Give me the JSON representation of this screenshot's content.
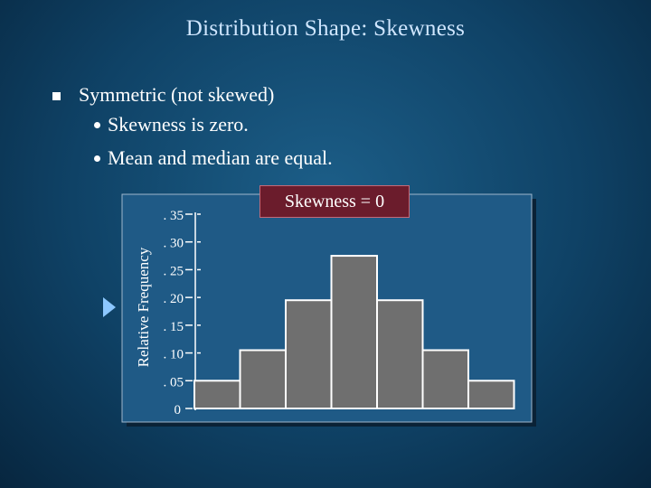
{
  "slide": {
    "title": "Distribution Shape:   Skewness",
    "bullet": "Symmetric (not skewed)",
    "subs": [
      "Skewness  is zero.",
      "Mean and median are equal."
    ],
    "badge": "Skewness  = 0"
  },
  "chart_data": {
    "type": "bar",
    "title": "",
    "xlabel": "",
    "ylabel": "Relative Frequency",
    "ylim": [
      0,
      0.35
    ],
    "yticks": [
      {
        "value": 0,
        "label": "0"
      },
      {
        "value": 0.05,
        "label": ". 05"
      },
      {
        "value": 0.1,
        "label": ". 10"
      },
      {
        "value": 0.15,
        "label": ". 15"
      },
      {
        "value": 0.2,
        "label": ". 20"
      },
      {
        "value": 0.25,
        "label": ". 25"
      },
      {
        "value": 0.3,
        "label": ". 30"
      },
      {
        "value": 0.35,
        "label": ". 35"
      }
    ],
    "values": [
      0.05,
      0.105,
      0.195,
      0.275,
      0.195,
      0.105,
      0.05
    ],
    "colors": {
      "bar": "#6f6f6f",
      "bar_edge": "#ffffff",
      "plot_bg": "#1f5a86"
    }
  }
}
